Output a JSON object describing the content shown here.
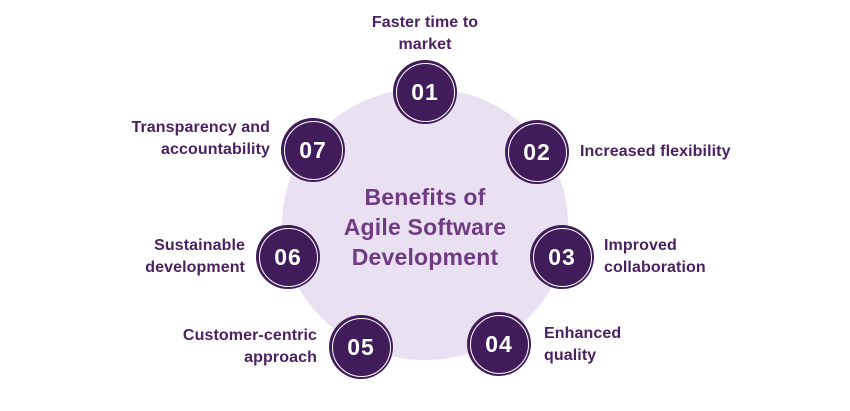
{
  "diagram": {
    "title_lines": [
      "Benefits of",
      "Agile Software",
      "Development"
    ],
    "colors": {
      "background": "#ffffff",
      "center_circle_fill": "#e9e0f2",
      "node_fill": "#411c5a",
      "node_ring": "#ffffff",
      "node_number_text": "#ffffff",
      "title_text": "#6f3c83",
      "label_text": "#4b2161"
    },
    "items": [
      {
        "number": "01",
        "label": "Faster time to market"
      },
      {
        "number": "02",
        "label": "Increased flexibility"
      },
      {
        "number": "03",
        "label": "Improved collaboration"
      },
      {
        "number": "04",
        "label": "Enhanced quality"
      },
      {
        "number": "05",
        "label": "Customer-centric approach"
      },
      {
        "number": "06",
        "label": "Sustainable development"
      },
      {
        "number": "07",
        "label": "Transparency and accountability"
      }
    ]
  }
}
